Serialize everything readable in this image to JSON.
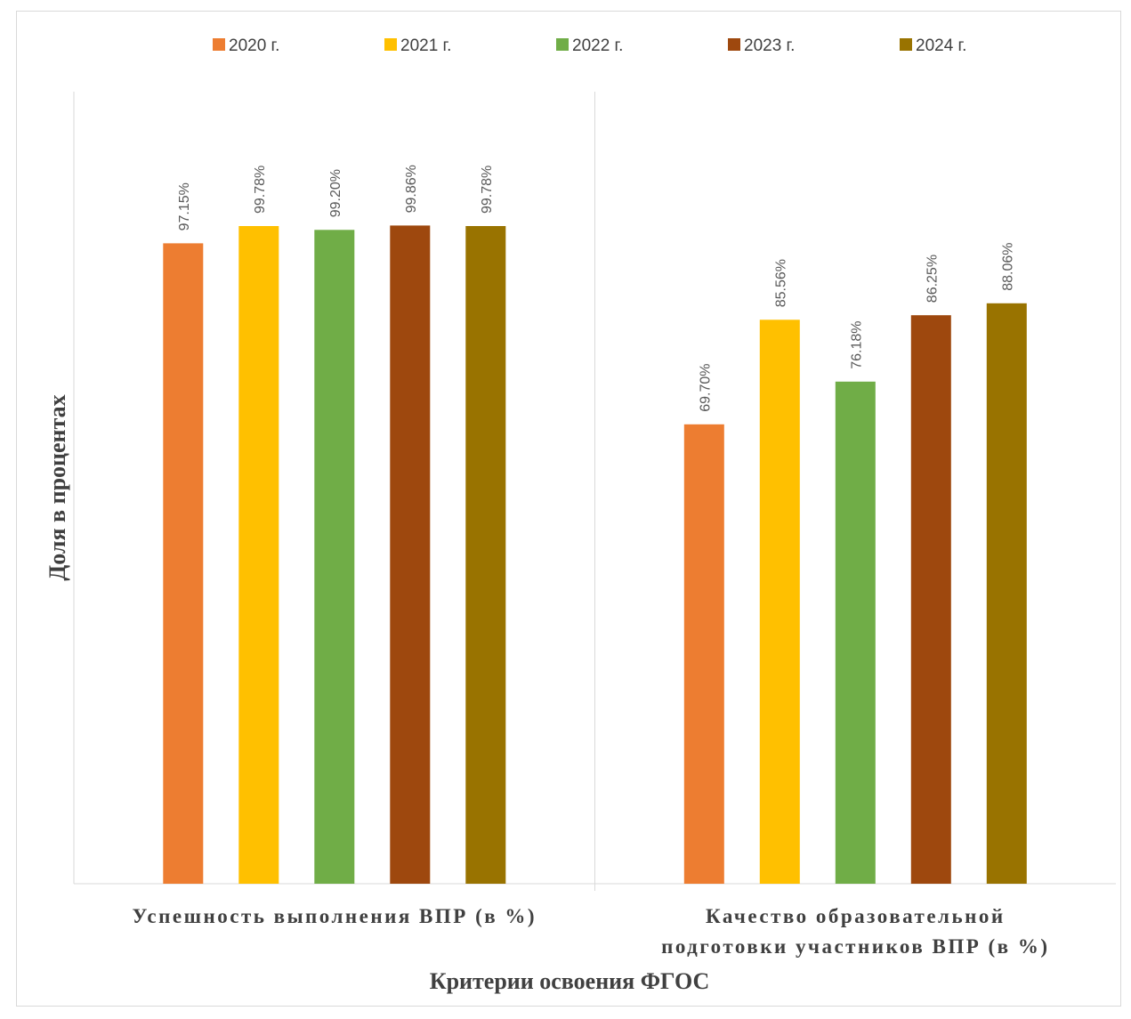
{
  "chart_data": {
    "type": "bar",
    "title": "",
    "xlabel": "Критерии освоения ФГОС",
    "ylabel": "Доля в процентах",
    "categories": [
      [
        "Успешность выполнения ВПР (в %)"
      ],
      [
        "Качество образовательной",
        "подготовки участников ВПР (в %)"
      ]
    ],
    "series": [
      {
        "name": "2020 г.",
        "color": "#ED7D31",
        "values": [
          97.15,
          69.7
        ],
        "labels": [
          "97.15%",
          "69.70%"
        ]
      },
      {
        "name": "2021 г.",
        "color": "#FFC000",
        "values": [
          99.78,
          85.56
        ],
        "labels": [
          "99.78%",
          "85.56%"
        ]
      },
      {
        "name": "2022 г.",
        "color": "#70AD47",
        "values": [
          99.2,
          76.18
        ],
        "labels": [
          "99.20%",
          "76.18%"
        ]
      },
      {
        "name": "2023 г.",
        "color": "#9E480E",
        "values": [
          99.86,
          86.25
        ],
        "labels": [
          "99.86%",
          "86.25%"
        ]
      },
      {
        "name": "2024 г.",
        "color": "#997300",
        "values": [
          99.78,
          88.06
        ],
        "labels": [
          "99.78%",
          "88.06%"
        ]
      }
    ],
    "ylim": [
      0,
      150
    ],
    "grid": false,
    "legend": "top"
  }
}
